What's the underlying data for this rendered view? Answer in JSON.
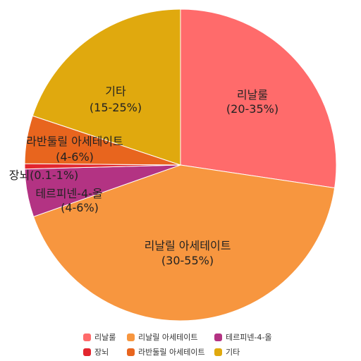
{
  "chart_data": {
    "type": "pie",
    "title": "",
    "start_angle_deg": 0,
    "direction": "clockwise",
    "legend_position": "bottom",
    "slices": [
      {
        "name": "리날룰",
        "label": "리날룰",
        "range": "(20-35%)",
        "value": 27.5,
        "color": "#ff6b6b"
      },
      {
        "name": "리날릴 아세테이트",
        "label": "리날릴 아세테이트",
        "range": "(30-55%)",
        "value": 42.5,
        "color": "#f7963f"
      },
      {
        "name": "테르피넨-4-올",
        "label": "테르피넨-4-올",
        "range": "(4-6%)",
        "value": 5.0,
        "color": "#b33383"
      },
      {
        "name": "장뇌",
        "label": "장뇌",
        "range": "(0.1-1%)",
        "value": 0.55,
        "color": "#e3262e"
      },
      {
        "name": "라반둘릴 아세테이트",
        "label": "라반둘릴 아세테이트",
        "range": "(4-6%)",
        "value": 5.0,
        "color": "#e8651e"
      },
      {
        "name": "기타",
        "label": "기타",
        "range": "(15-25%)",
        "value": 20.0,
        "color": "#e0a90e"
      }
    ]
  }
}
